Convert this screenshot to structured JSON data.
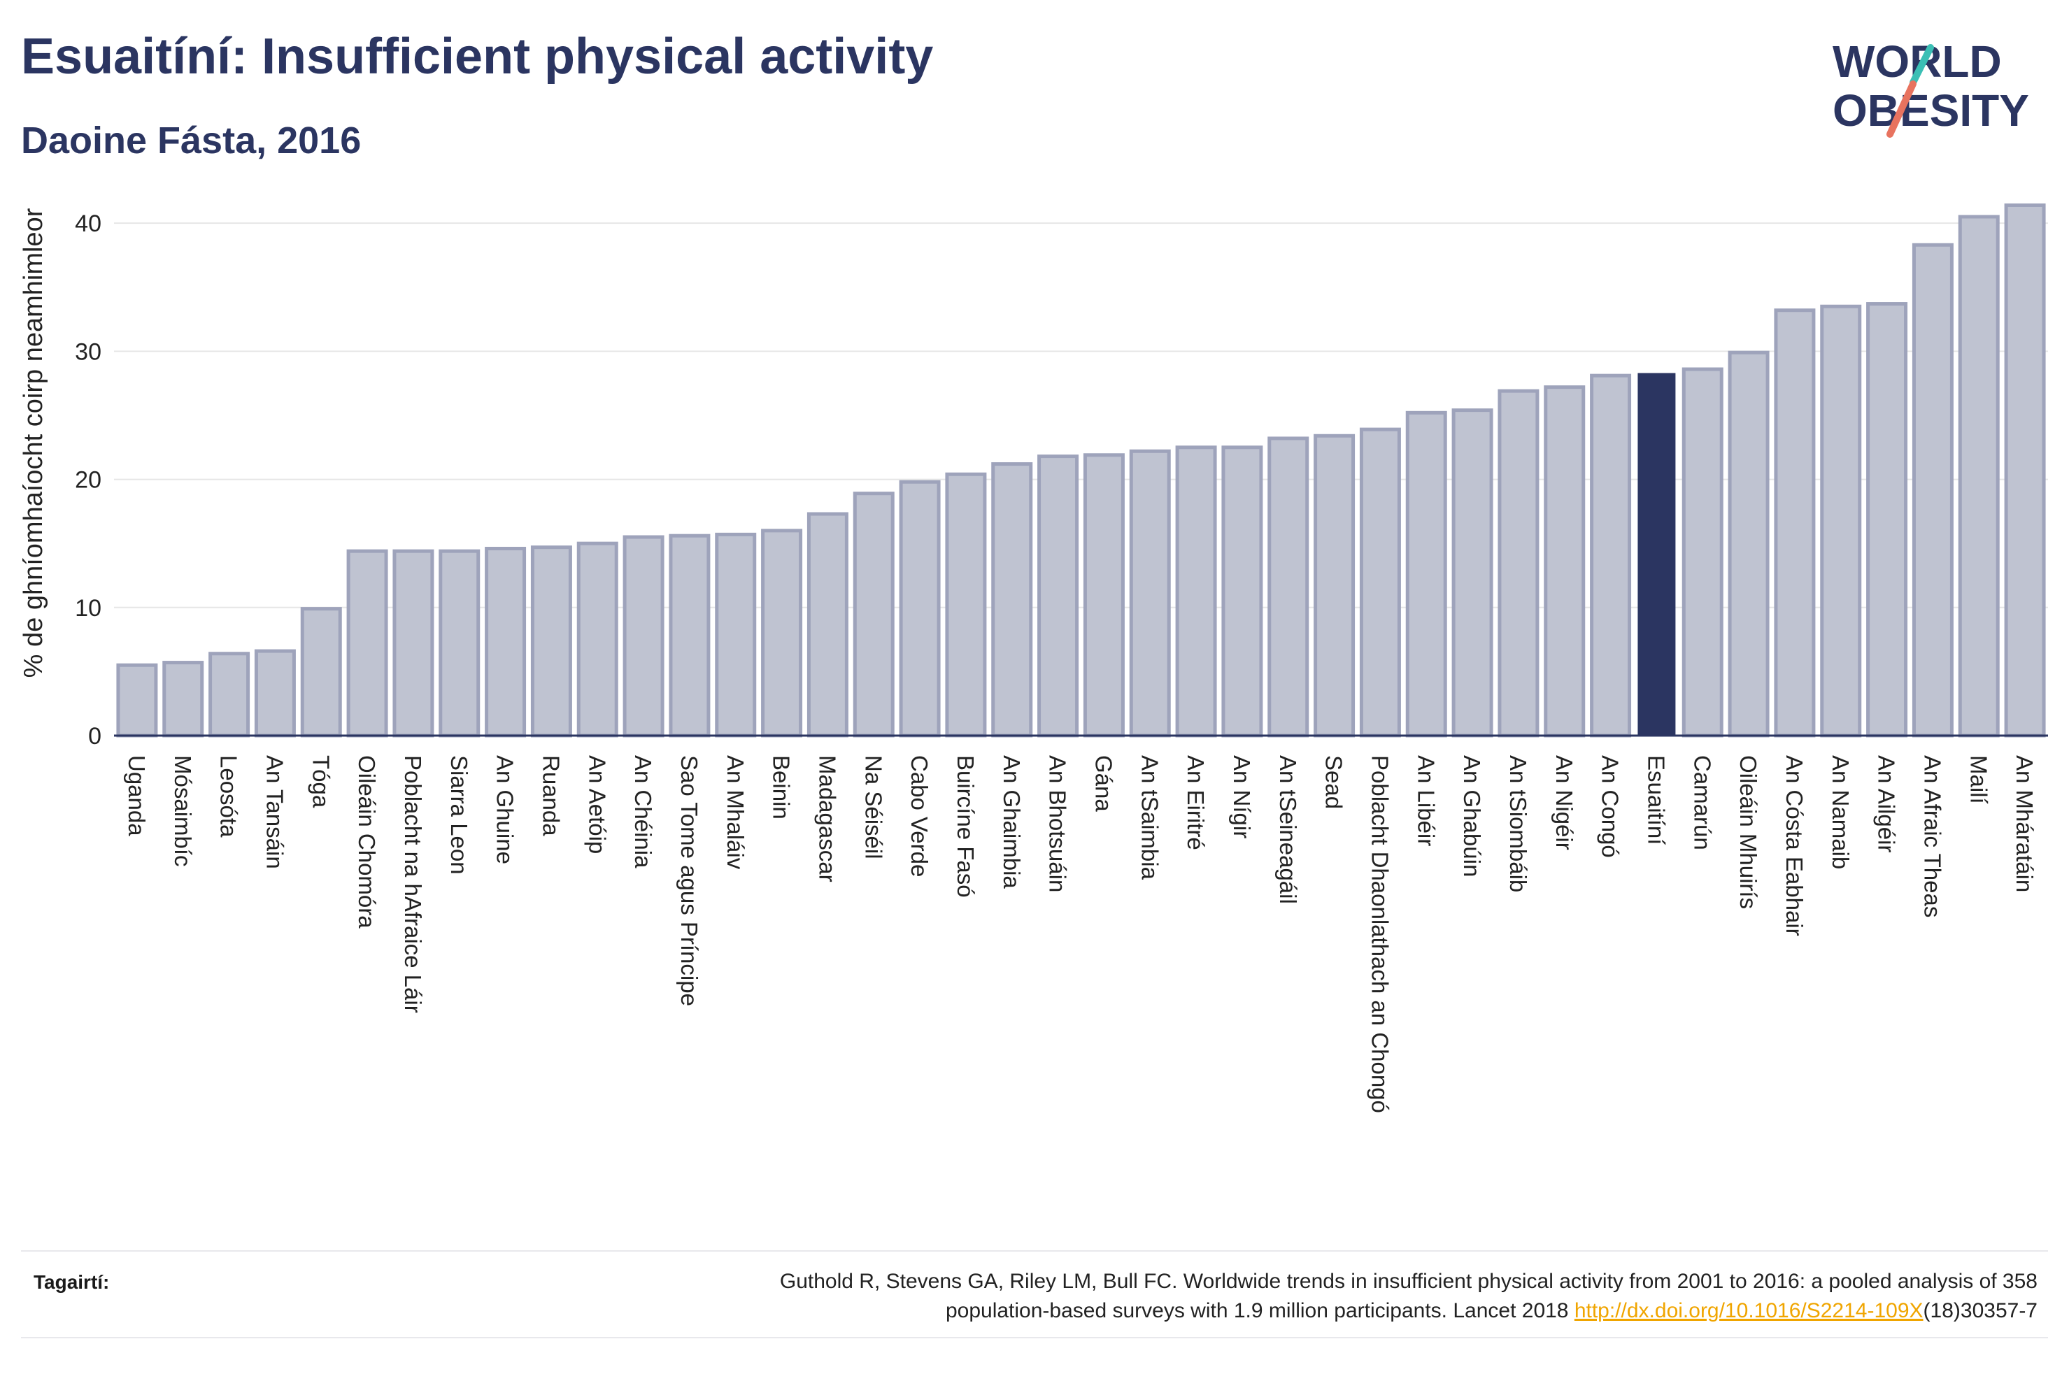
{
  "header": {
    "title": "Esuaitíní: Insufficient physical activity",
    "subtitle": "Daoine Fásta, 2016"
  },
  "logo": {
    "line1": "WORLD",
    "line2": "OBESITY"
  },
  "colors": {
    "bar": "#bfc3d1",
    "bar_stroke": "#9ea3bb",
    "highlight": "#2b3561",
    "grid": "#e6e6e6",
    "axis": "#2b3561",
    "logo_teal": "#3bbfb5",
    "logo_coral": "#e8735f",
    "link": "#f0a500"
  },
  "chart_data": {
    "type": "bar",
    "ylabel": "% de ghníomhaíocht coirp neamhimleor",
    "xlabel": "",
    "ylim": [
      0,
      43.5
    ],
    "yticks": [
      0,
      10,
      20,
      30,
      40
    ],
    "grid": true,
    "highlight": "Esuaitíní",
    "categories": [
      "Uganda",
      "Mósaimbíc",
      "Leosóta",
      "An Tansáin",
      "Tóga",
      "Oileáin Chomóra",
      "Poblacht na hAfraice Láir",
      "Siarra Leon",
      "An Ghuine",
      "Ruanda",
      "An Aetóip",
      "An Chéinia",
      "Sao Tome agus Príncipe",
      "An Mhaláiv",
      "Beinin",
      "Madagascar",
      "Na Séiséil",
      "Cabo Verde",
      "Buircíne Fasó",
      "An Ghaimbia",
      "An Bhotsuáin",
      "Gána",
      "An tSaimbia",
      "An Eiritré",
      "An Nígir",
      "An tSeineagáil",
      "Sead",
      "Poblacht Dhaonlathach an Chongó",
      "An Libéir",
      "An Ghabúin",
      "An tSiombáib",
      "An Nigéir",
      "An Congó",
      "Esuaitíní",
      "Camarún",
      "Oileáin Mhuirís",
      "An Cósta Eabhair",
      "An Namaib",
      "An Ailgéir",
      "An Afraic Theas",
      "Mailí",
      "An Mháratáin"
    ],
    "values": [
      5.5,
      5.7,
      6.4,
      6.6,
      9.9,
      14.4,
      14.4,
      14.4,
      14.6,
      14.7,
      15.0,
      15.5,
      15.6,
      15.7,
      16.0,
      17.3,
      18.9,
      19.8,
      20.4,
      21.2,
      21.8,
      21.9,
      22.2,
      22.5,
      22.5,
      23.2,
      23.4,
      23.9,
      25.2,
      25.4,
      26.9,
      27.2,
      28.1,
      28.3,
      28.6,
      29.9,
      33.2,
      33.5,
      33.7,
      38.3,
      40.5,
      41.4
    ]
  },
  "footer": {
    "ref_label": "Tagairtí:",
    "ref_line1": "Guthold R, Stevens GA, Riley LM, Bull FC. Worldwide trends in insufficient physical activity from 2001 to 2016: a pooled analysis of 358",
    "ref_line2_pre": "population-based surveys with 1.9 million participants. Lancet 2018 ",
    "ref_link": "http://dx.doi.org/10.1016/S2214-109X",
    "ref_line2_post": "(18)30357-7"
  }
}
